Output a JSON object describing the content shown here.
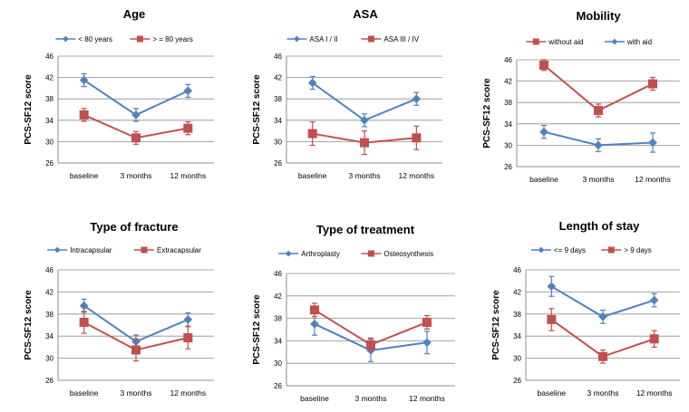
{
  "chart_data": [
    {
      "type": "line",
      "title": "Age",
      "ylabel": "PCS-SF12 score",
      "categories": [
        "baseline",
        "3 months",
        "12 months"
      ],
      "ylim": [
        26,
        46
      ],
      "yticks": [
        26,
        30,
        34,
        38,
        42,
        46
      ],
      "legend_position": "top",
      "grid": true,
      "series": [
        {
          "name": "< 80 years",
          "color": "#4f81bd",
          "marker": "diamond",
          "values": [
            41.5,
            35.0,
            39.5
          ],
          "err": [
            1.2,
            1.2,
            1.2
          ]
        },
        {
          "name": "> = 80 years",
          "color": "#c0504d",
          "marker": "square",
          "values": [
            35.0,
            30.7,
            32.5
          ],
          "err": [
            1.2,
            1.2,
            1.2
          ]
        }
      ]
    },
    {
      "type": "line",
      "title": "ASA",
      "ylabel": "PCS-SF12 score",
      "categories": [
        "baseline",
        "3 months",
        "12 months"
      ],
      "ylim": [
        26,
        46
      ],
      "yticks": [
        26,
        30,
        34,
        38,
        42,
        46
      ],
      "legend_position": "top",
      "grid": true,
      "series": [
        {
          "name": "ASA I / II",
          "color": "#4f81bd",
          "marker": "diamond",
          "values": [
            41.0,
            34.0,
            38.0
          ],
          "err": [
            1.2,
            1.2,
            1.2
          ]
        },
        {
          "name": "ASA III / IV",
          "color": "#c0504d",
          "marker": "square",
          "values": [
            31.5,
            29.8,
            30.7
          ],
          "err": [
            2.2,
            2.2,
            2.2
          ]
        }
      ]
    },
    {
      "type": "line",
      "title": "Mobility",
      "ylabel": "PCS-SF12 score",
      "categories": [
        "baseline",
        "3 months",
        "12 months"
      ],
      "ylim": [
        26,
        46
      ],
      "yticks": [
        26,
        30,
        34,
        38,
        42,
        46
      ],
      "legend_position": "top",
      "grid": true,
      "series": [
        {
          "name": "without aid",
          "color": "#c0504d",
          "marker": "square",
          "values": [
            45.0,
            36.5,
            41.5
          ],
          "err": [
            1.0,
            1.2,
            1.2
          ]
        },
        {
          "name": "with aid",
          "color": "#4f81bd",
          "marker": "diamond",
          "values": [
            32.5,
            30.0,
            30.5
          ],
          "err": [
            1.2,
            1.2,
            1.8
          ]
        }
      ]
    },
    {
      "type": "line",
      "title": "Type of fracture",
      "ylabel": "PCS-SF12 score",
      "categories": [
        "baseline",
        "3 months",
        "12 months"
      ],
      "ylim": [
        26,
        46
      ],
      "yticks": [
        26,
        30,
        34,
        38,
        42,
        46
      ],
      "legend_position": "top",
      "grid": true,
      "series": [
        {
          "name": "Intracapsular",
          "color": "#4f81bd",
          "marker": "diamond",
          "values": [
            39.5,
            33.0,
            37.0
          ],
          "err": [
            1.2,
            1.2,
            1.2
          ]
        },
        {
          "name": "Extracapsular",
          "color": "#c0504d",
          "marker": "square",
          "values": [
            36.5,
            31.5,
            33.7
          ],
          "err": [
            2.0,
            2.0,
            2.0
          ]
        }
      ]
    },
    {
      "type": "line",
      "title": "Type of treatment",
      "ylabel": "PCS-SF12 score",
      "categories": [
        "baseline",
        "3 months",
        "12 months"
      ],
      "ylim": [
        26,
        46
      ],
      "yticks": [
        26,
        30,
        34,
        38,
        42,
        46
      ],
      "legend_position": "top",
      "grid": true,
      "series": [
        {
          "name": "Arthroplasty",
          "color": "#4f81bd",
          "marker": "diamond",
          "values": [
            37.0,
            32.3,
            33.7
          ],
          "err": [
            2.0,
            2.0,
            2.0
          ]
        },
        {
          "name": "Osteosynthesis",
          "color": "#c0504d",
          "marker": "square",
          "values": [
            39.5,
            33.3,
            37.3
          ],
          "err": [
            1.2,
            1.2,
            1.2
          ]
        }
      ]
    },
    {
      "type": "line",
      "title": "Length of stay",
      "ylabel": "PCS-SF12 score",
      "categories": [
        "baseline",
        "3 months",
        "12 months"
      ],
      "ylim": [
        26,
        46
      ],
      "yticks": [
        26,
        30,
        34,
        38,
        42,
        46
      ],
      "legend_position": "top",
      "grid": true,
      "series": [
        {
          "name": "<= 9 days",
          "color": "#4f81bd",
          "marker": "diamond",
          "values": [
            43.0,
            37.5,
            40.5
          ],
          "err": [
            1.8,
            1.2,
            1.2
          ]
        },
        {
          "name": "> 9 days",
          "color": "#c0504d",
          "marker": "square",
          "values": [
            37.0,
            30.3,
            33.5
          ],
          "err": [
            2.0,
            1.2,
            1.5
          ]
        }
      ]
    }
  ]
}
